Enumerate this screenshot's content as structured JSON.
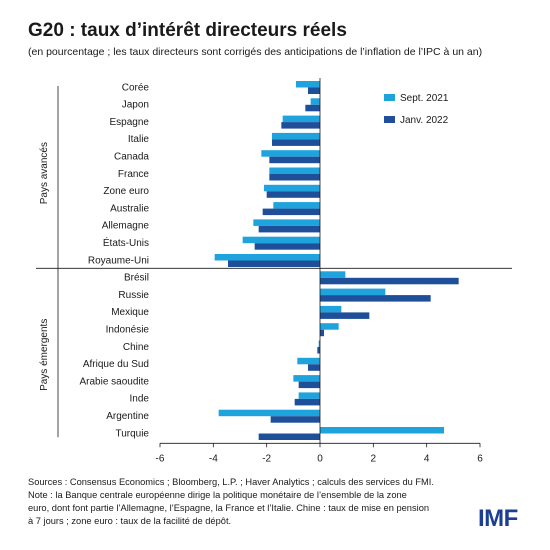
{
  "title": "G20 : taux d’intérêt directeurs réels",
  "subtitle": "(en pourcentage ; les taux directeurs sont corrigés des anticipations de l’inflation de l’IPC à un an)",
  "notes": [
    "Sources : Consensus Economics ; Bloomberg, L.P. ; Haver Analytics ; calculs des services du FMI.",
    "Note : la Banque centrale européenne  dirige la politique monétaire de l’ensemble de la zone",
    "euro, dont font partie l’Allemagne, l’Espagne, la France et l’Italie. Chine : taux de mise en pension",
    "à 7 jours ; zone euro : taux de la facilité de dépôt."
  ],
  "logo": "IMF",
  "colors": {
    "sept_2021": "#1fa3dc",
    "janv_2022": "#1f4f99",
    "axis": "#1a1a1a"
  },
  "chart_data": {
    "type": "bar",
    "orientation": "horizontal",
    "xlim": [
      -6,
      6
    ],
    "xticks": [
      "-6",
      "-4",
      "-2",
      "0",
      "2",
      "4",
      "6"
    ],
    "xtick_values": [
      -6,
      -4,
      -2,
      0,
      2,
      4,
      6
    ],
    "grid": false,
    "legend_position": "top-right",
    "groups": [
      {
        "label": "Pays avancés",
        "start": 0,
        "end": 10
      },
      {
        "label": "Pays émergents",
        "start": 10,
        "end": 20
      }
    ],
    "categories": [
      "Corée",
      "Japon",
      "Espagne",
      "Italie",
      "Canada",
      "France",
      "Zone euro",
      "Australie",
      "Allemagne",
      "États-Unis",
      "Royaume-Uni",
      "Brésil",
      "Russie",
      "Mexique",
      "Indonésie",
      "Chine",
      "Afrique du Sud",
      "Arabie saoudite",
      "Inde",
      "Argentine",
      "Turquie"
    ],
    "series": [
      {
        "name": "Sept. 2021",
        "values": [
          -0.9,
          -0.35,
          -1.4,
          -1.8,
          -2.2,
          -1.9,
          -2.1,
          -1.75,
          -2.5,
          -2.9,
          -3.95,
          0.95,
          2.45,
          0.8,
          0.7,
          -0.05,
          -0.85,
          -1.0,
          -0.8,
          -3.8,
          4.65
        ]
      },
      {
        "name": "Janv. 2022",
        "values": [
          -0.45,
          -0.55,
          -1.45,
          -1.8,
          -1.9,
          -1.9,
          -2.0,
          -2.15,
          -2.3,
          -2.45,
          -3.45,
          5.2,
          4.15,
          1.85,
          0.15,
          -0.1,
          -0.45,
          -0.8,
          -0.95,
          -1.85,
          -2.3
        ]
      }
    ]
  }
}
